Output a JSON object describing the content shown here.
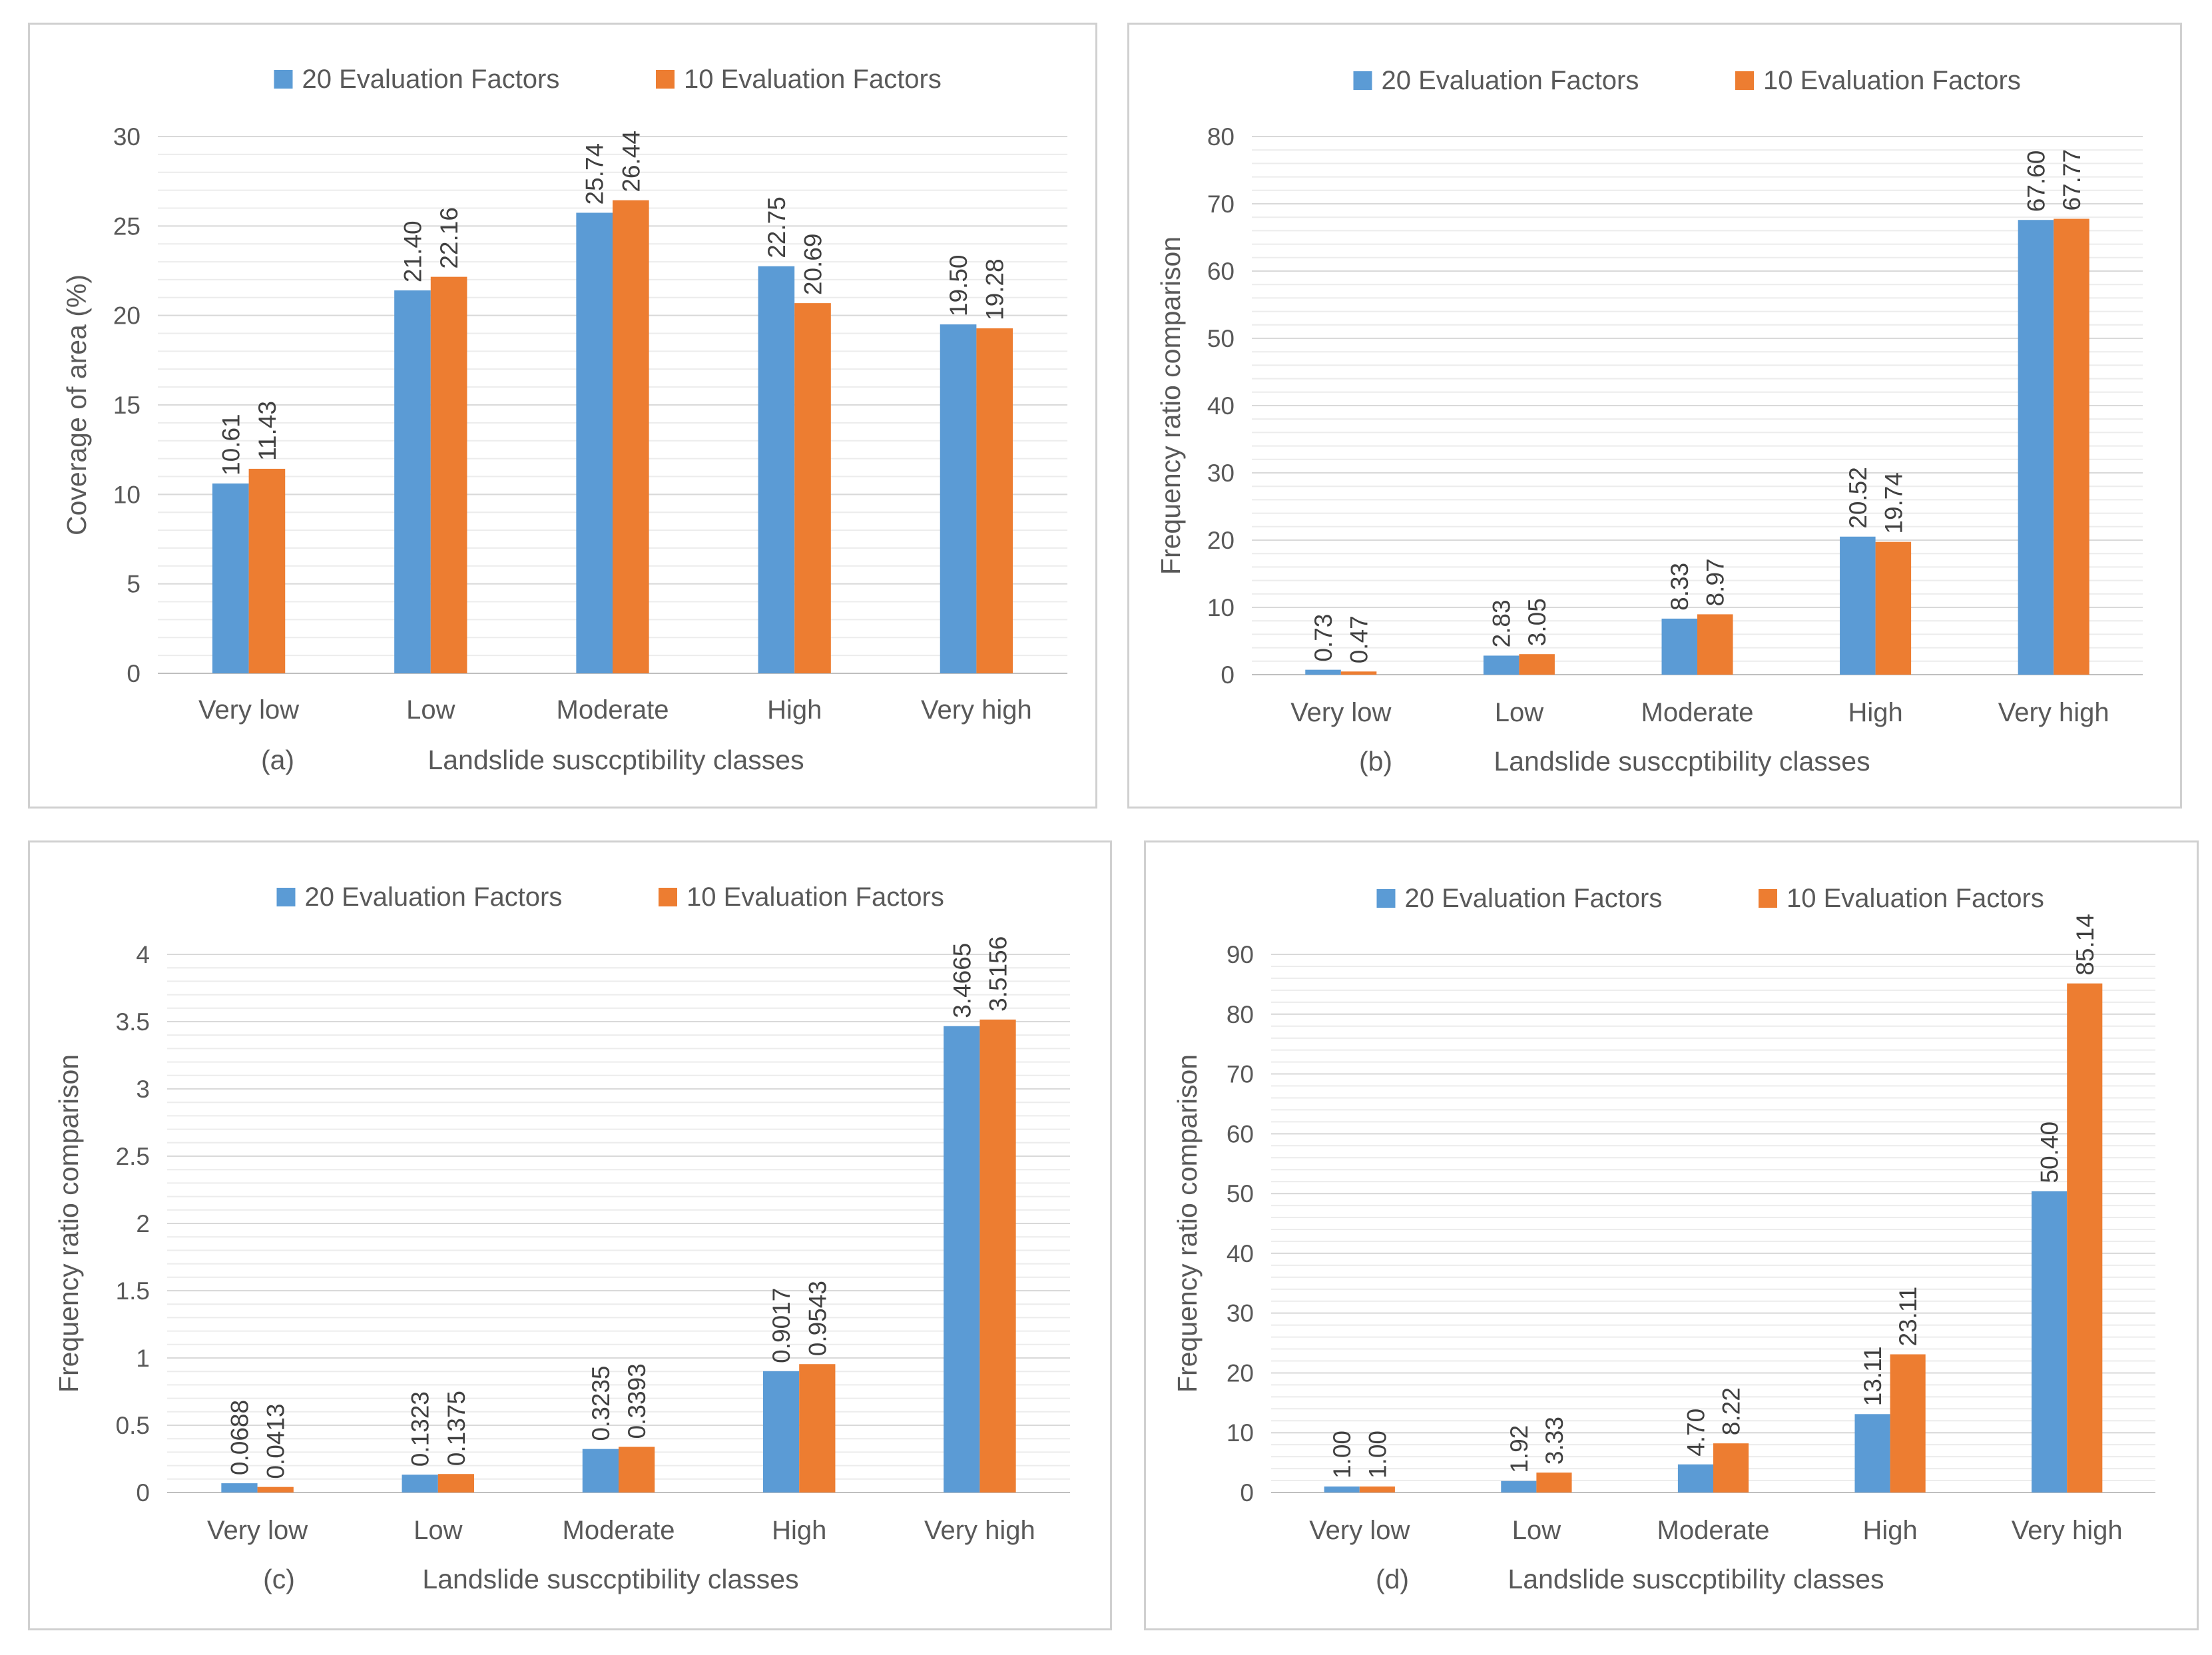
{
  "colors": {
    "series1": "#5b9bd5",
    "series2": "#ed7d31",
    "grid": "#d9d9d9",
    "text": "#595959"
  },
  "chart_data": [
    {
      "type": "bar",
      "panel_label": "(a)",
      "xlabel": "Landslide susccptibility classes",
      "ylabel": "Coverage of area (%)",
      "categories": [
        "Very low",
        "Low",
        "Moderate",
        "High",
        "Very high"
      ],
      "ylim": [
        0,
        30
      ],
      "yticks": [
        0,
        5,
        10,
        15,
        20,
        25,
        30
      ],
      "ytick_labels": [
        "0",
        "5",
        "10",
        "15",
        "20",
        "25",
        "30"
      ],
      "minor_gridlines": true,
      "legend_position": "top-center",
      "series": [
        {
          "name": "20 Evaluation Factors",
          "values": [
            10.61,
            21.4,
            25.74,
            22.75,
            19.5
          ],
          "labels": [
            "10.61",
            "21.40",
            "25.74",
            "22.75",
            "19.50"
          ]
        },
        {
          "name": "10 Evaluation Factors",
          "values": [
            11.43,
            22.16,
            26.44,
            20.69,
            19.28
          ],
          "labels": [
            "11.43",
            "22.16",
            "26.44",
            "20.69",
            "19.28"
          ]
        }
      ]
    },
    {
      "type": "bar",
      "panel_label": "(b)",
      "xlabel": "Landslide susccptibility classes",
      "ylabel": "Frequency ratio comparison",
      "categories": [
        "Very low",
        "Low",
        "Moderate",
        "High",
        "Very high"
      ],
      "ylim": [
        0,
        80
      ],
      "yticks": [
        0,
        10,
        20,
        30,
        40,
        50,
        60,
        70,
        80
      ],
      "ytick_labels": [
        "0",
        "10",
        "20",
        "30",
        "40",
        "50",
        "60",
        "70",
        "80"
      ],
      "minor_gridlines": true,
      "legend_position": "top-center",
      "series": [
        {
          "name": "20 Evaluation Factors",
          "values": [
            0.73,
            2.83,
            8.33,
            20.52,
            67.6
          ],
          "labels": [
            "0.73",
            "2.83",
            "8.33",
            "20.52",
            "67.60"
          ]
        },
        {
          "name": "10 Evaluation Factors",
          "values": [
            0.47,
            3.05,
            8.97,
            19.74,
            67.77
          ],
          "labels": [
            "0.47",
            "3.05",
            "8.97",
            "19.74",
            "67.77"
          ]
        }
      ]
    },
    {
      "type": "bar",
      "panel_label": "(c)",
      "xlabel": "Landslide susccptibility classes",
      "ylabel": "Frequency ratio comparison",
      "categories": [
        "Very low",
        "Low",
        "Moderate",
        "High",
        "Very high"
      ],
      "ylim": [
        0,
        4
      ],
      "yticks": [
        0,
        0.5,
        1,
        1.5,
        2,
        2.5,
        3,
        3.5,
        4
      ],
      "ytick_labels": [
        "0",
        "0.5",
        "1",
        "1.5",
        "2",
        "2.5",
        "3",
        "3.5",
        "4"
      ],
      "minor_gridlines": true,
      "legend_position": "top-center",
      "series": [
        {
          "name": "20 Evaluation Factors",
          "values": [
            0.0688,
            0.1323,
            0.3235,
            0.9017,
            3.4665
          ],
          "labels": [
            "0.0688",
            "0.1323",
            "0.3235",
            "0.9017",
            "3.4665"
          ]
        },
        {
          "name": "10 Evaluation Factors",
          "values": [
            0.0413,
            0.1375,
            0.3393,
            0.9543,
            3.5156
          ],
          "labels": [
            "0.0413",
            "0.1375",
            "0.3393",
            "0.9543",
            "3.5156"
          ]
        }
      ]
    },
    {
      "type": "bar",
      "panel_label": "(d)",
      "xlabel": "Landslide susccptibility classes",
      "ylabel": "Frequency ratio comparison",
      "categories": [
        "Very low",
        "Low",
        "Moderate",
        "High",
        "Very high"
      ],
      "ylim": [
        0,
        90
      ],
      "yticks": [
        0,
        10,
        20,
        30,
        40,
        50,
        60,
        70,
        80,
        90
      ],
      "ytick_labels": [
        "0",
        "10",
        "20",
        "30",
        "40",
        "50",
        "60",
        "70",
        "80",
        "90"
      ],
      "minor_gridlines": true,
      "legend_position": "top-center",
      "series": [
        {
          "name": "20 Evaluation Factors",
          "values": [
            1.0,
            1.92,
            4.7,
            13.11,
            50.4
          ],
          "labels": [
            "1.00",
            "1.92",
            "4.70",
            "13.11",
            "50.40"
          ]
        },
        {
          "name": "10 Evaluation Factors",
          "values": [
            1.0,
            3.33,
            8.22,
            23.11,
            85.14
          ],
          "labels": [
            "1.00",
            "3.33",
            "8.22",
            "23.11",
            "85.14"
          ]
        }
      ]
    }
  ]
}
